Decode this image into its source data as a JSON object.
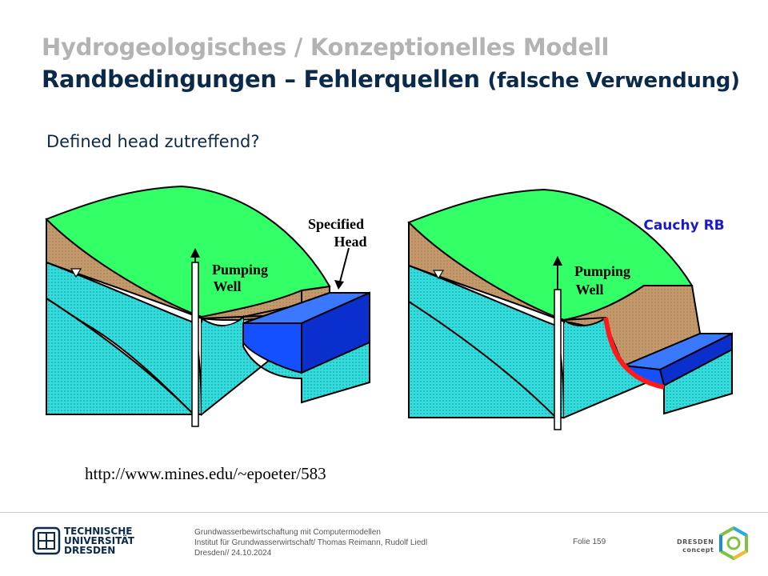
{
  "header": {
    "title_line1": "Hydrogeologisches / Konzeptionelles Modell",
    "title_line2_main": "Randbedingungen – Fehlerquellen",
    "title_line2_paren": "(falsche Verwendung)"
  },
  "subtitle": "Defined head zutreffend?",
  "figure_left": {
    "label_well_1": "Pumping",
    "label_well_2": "Well",
    "label_head_1": "Specified",
    "label_head_2": "Head"
  },
  "figure_right": {
    "label_well_1": "Pumping",
    "label_well_2": "Well",
    "label_cauchy": "Cauchy RB"
  },
  "source_url": "http://www.mines.edu/~epoeter/583",
  "footer": {
    "uni_line1": "TECHNISCHE",
    "uni_line2": "UNIVERSITÄT",
    "uni_line3": "DRESDEN",
    "info_line1": "Grundwasserbewirtschaftung mit Computermodellen",
    "info_line2": "Institut für Grundwasserwirtschaft/ Thomas Reimann, Rudolf Liedl",
    "info_line3": "Dresden// 24.10.2024",
    "slide_number": "Folie 159",
    "partner_line1": "DRESDEN",
    "partner_line2": "concept"
  },
  "colors": {
    "title_gray": "#b3b3b3",
    "title_navy": "#0b2a4a",
    "surface_green": "#33ff66",
    "soil_brown": "#c49a6c",
    "aquifer_cyan": "#33dddd",
    "water_blue": "#1450ff",
    "cauchy_red": "#ff1a1a",
    "cauchy_label": "#1a1acc"
  }
}
